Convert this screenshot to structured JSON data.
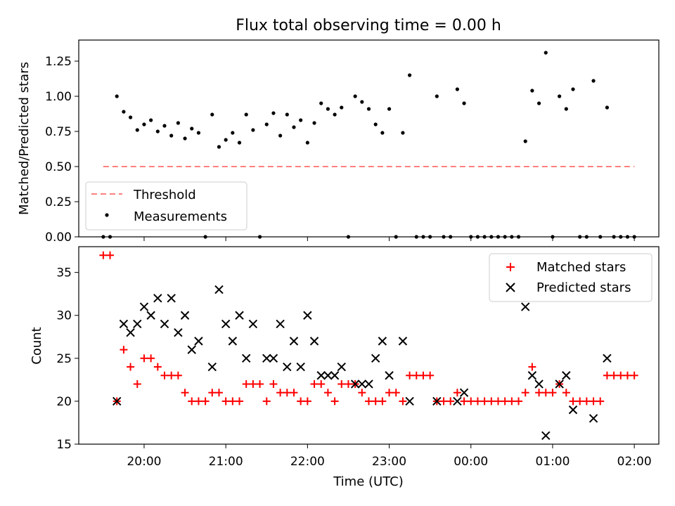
{
  "chart_data": [
    {
      "type": "scatter",
      "title": "Flux total observing time = 0.00 h",
      "xlabel": "",
      "ylabel": "Matched/Predicted stars",
      "ylim": [
        0,
        1.4
      ],
      "yticks": [
        0.0,
        0.25,
        0.5,
        0.75,
        1.0,
        1.25
      ],
      "ytick_labels": [
        "0.00",
        "0.25",
        "0.50",
        "0.75",
        "1.00",
        "1.25"
      ],
      "grid": false,
      "legend_position": "lower-left",
      "threshold": {
        "name": "Threshold",
        "value": 0.5,
        "x_start": "19:30",
        "x_end": "02:00",
        "color": "#ff7f7f"
      },
      "series": [
        {
          "name": "Measurements",
          "color": "#000000",
          "points": [
            [
              "19:30",
              0.0
            ],
            [
              "19:35",
              0.0
            ],
            [
              "19:40",
              1.0
            ],
            [
              "19:45",
              0.89
            ],
            [
              "19:50",
              0.85
            ],
            [
              "19:55",
              0.76
            ],
            [
              "20:00",
              0.8
            ],
            [
              "20:05",
              0.83
            ],
            [
              "20:10",
              0.75
            ],
            [
              "20:15",
              0.79
            ],
            [
              "20:20",
              0.72
            ],
            [
              "20:25",
              0.81
            ],
            [
              "20:30",
              0.7
            ],
            [
              "20:35",
              0.77
            ],
            [
              "20:40",
              0.74
            ],
            [
              "20:45",
              0.0
            ],
            [
              "20:50",
              0.87
            ],
            [
              "20:55",
              0.64
            ],
            [
              "21:00",
              0.69
            ],
            [
              "21:05",
              0.74
            ],
            [
              "21:10",
              0.67
            ],
            [
              "21:15",
              0.87
            ],
            [
              "21:20",
              0.76
            ],
            [
              "21:25",
              0.0
            ],
            [
              "21:30",
              0.8
            ],
            [
              "21:35",
              0.88
            ],
            [
              "21:40",
              0.72
            ],
            [
              "21:45",
              0.87
            ],
            [
              "21:50",
              0.78
            ],
            [
              "21:55",
              0.83
            ],
            [
              "22:00",
              0.67
            ],
            [
              "22:05",
              0.81
            ],
            [
              "22:10",
              0.95
            ],
            [
              "22:15",
              0.91
            ],
            [
              "22:20",
              0.87
            ],
            [
              "22:25",
              0.92
            ],
            [
              "22:30",
              0.0
            ],
            [
              "22:35",
              1.0
            ],
            [
              "22:40",
              0.96
            ],
            [
              "22:45",
              0.91
            ],
            [
              "22:50",
              0.8
            ],
            [
              "22:55",
              0.74
            ],
            [
              "23:00",
              0.91
            ],
            [
              "23:05",
              0.0
            ],
            [
              "23:10",
              0.74
            ],
            [
              "23:15",
              1.15
            ],
            [
              "23:20",
              0.0
            ],
            [
              "23:25",
              0.0
            ],
            [
              "23:30",
              0.0
            ],
            [
              "23:35",
              1.0
            ],
            [
              "23:40",
              0.0
            ],
            [
              "23:45",
              0.0
            ],
            [
              "23:50",
              1.05
            ],
            [
              "23:55",
              0.95
            ],
            [
              "00:00",
              0.0
            ],
            [
              "00:05",
              0.0
            ],
            [
              "00:10",
              0.0
            ],
            [
              "00:15",
              0.0
            ],
            [
              "00:20",
              0.0
            ],
            [
              "00:25",
              0.0
            ],
            [
              "00:30",
              0.0
            ],
            [
              "00:35",
              0.0
            ],
            [
              "00:40",
              0.68
            ],
            [
              "00:45",
              1.04
            ],
            [
              "00:50",
              0.95
            ],
            [
              "00:55",
              1.31
            ],
            [
              "01:00",
              0.0
            ],
            [
              "01:05",
              1.0
            ],
            [
              "01:10",
              0.91
            ],
            [
              "01:15",
              1.05
            ],
            [
              "01:20",
              0.0
            ],
            [
              "01:25",
              0.0
            ],
            [
              "01:30",
              1.11
            ],
            [
              "01:35",
              0.0
            ],
            [
              "01:40",
              0.92
            ],
            [
              "01:45",
              0.0
            ],
            [
              "01:50",
              0.0
            ],
            [
              "01:55",
              0.0
            ],
            [
              "02:00",
              0.0
            ]
          ]
        }
      ]
    },
    {
      "type": "scatter",
      "title": "",
      "xlabel": "Time (UTC)",
      "ylabel": "Count",
      "ylim": [
        15,
        38
      ],
      "yticks": [
        15,
        20,
        25,
        30,
        35
      ],
      "ytick_labels": [
        "15",
        "20",
        "25",
        "30",
        "35"
      ],
      "xlim": [
        "19:12",
        "02:18"
      ],
      "xticks": [
        "20:00",
        "21:00",
        "22:00",
        "23:00",
        "00:00",
        "01:00",
        "02:00"
      ],
      "xtick_labels": [
        "20:00",
        "21:00",
        "22:00",
        "23:00",
        "00:00",
        "01:00",
        "02:00"
      ],
      "grid": false,
      "legend_position": "upper-right",
      "series": [
        {
          "name": "Matched stars",
          "marker": "plus",
          "color": "#ff0000",
          "points": [
            [
              "19:30",
              37
            ],
            [
              "19:35",
              37
            ],
            [
              "19:40",
              20
            ],
            [
              "19:45",
              26
            ],
            [
              "19:50",
              24
            ],
            [
              "19:55",
              22
            ],
            [
              "20:00",
              25
            ],
            [
              "20:05",
              25
            ],
            [
              "20:10",
              24
            ],
            [
              "20:15",
              23
            ],
            [
              "20:20",
              23
            ],
            [
              "20:25",
              23
            ],
            [
              "20:30",
              21
            ],
            [
              "20:35",
              20
            ],
            [
              "20:40",
              20
            ],
            [
              "20:45",
              20
            ],
            [
              "20:50",
              21
            ],
            [
              "20:55",
              21
            ],
            [
              "21:00",
              20
            ],
            [
              "21:05",
              20
            ],
            [
              "21:10",
              20
            ],
            [
              "21:15",
              22
            ],
            [
              "21:20",
              22
            ],
            [
              "21:25",
              22
            ],
            [
              "21:30",
              20
            ],
            [
              "21:35",
              22
            ],
            [
              "21:40",
              21
            ],
            [
              "21:45",
              21
            ],
            [
              "21:50",
              21
            ],
            [
              "21:55",
              20
            ],
            [
              "22:00",
              20
            ],
            [
              "22:05",
              22
            ],
            [
              "22:10",
              22
            ],
            [
              "22:15",
              21
            ],
            [
              "22:20",
              20
            ],
            [
              "22:25",
              22
            ],
            [
              "22:30",
              22
            ],
            [
              "22:35",
              22
            ],
            [
              "22:40",
              21
            ],
            [
              "22:45",
              20
            ],
            [
              "22:50",
              20
            ],
            [
              "22:55",
              20
            ],
            [
              "23:00",
              21
            ],
            [
              "23:05",
              21
            ],
            [
              "23:10",
              20
            ],
            [
              "23:15",
              23
            ],
            [
              "23:20",
              23
            ],
            [
              "23:25",
              23
            ],
            [
              "23:30",
              23
            ],
            [
              "23:35",
              20
            ],
            [
              "23:40",
              20
            ],
            [
              "23:45",
              20
            ],
            [
              "23:50",
              21
            ],
            [
              "23:55",
              20
            ],
            [
              "00:00",
              20
            ],
            [
              "00:05",
              20
            ],
            [
              "00:10",
              20
            ],
            [
              "00:15",
              20
            ],
            [
              "00:20",
              20
            ],
            [
              "00:25",
              20
            ],
            [
              "00:30",
              20
            ],
            [
              "00:35",
              20
            ],
            [
              "00:40",
              21
            ],
            [
              "00:45",
              24
            ],
            [
              "00:50",
              21
            ],
            [
              "00:55",
              21
            ],
            [
              "01:00",
              21
            ],
            [
              "01:05",
              22
            ],
            [
              "01:10",
              21
            ],
            [
              "01:15",
              20
            ],
            [
              "01:20",
              20
            ],
            [
              "01:25",
              20
            ],
            [
              "01:30",
              20
            ],
            [
              "01:35",
              20
            ],
            [
              "01:40",
              23
            ],
            [
              "01:45",
              23
            ],
            [
              "01:50",
              23
            ],
            [
              "01:55",
              23
            ],
            [
              "02:00",
              23
            ]
          ]
        },
        {
          "name": "Predicted stars",
          "marker": "x",
          "color": "#000000",
          "points": [
            [
              "19:40",
              20
            ],
            [
              "19:45",
              29
            ],
            [
              "19:50",
              28
            ],
            [
              "19:55",
              29
            ],
            [
              "20:00",
              31
            ],
            [
              "20:05",
              30
            ],
            [
              "20:10",
              32
            ],
            [
              "20:15",
              29
            ],
            [
              "20:20",
              32
            ],
            [
              "20:25",
              28
            ],
            [
              "20:30",
              30
            ],
            [
              "20:35",
              26
            ],
            [
              "20:40",
              27
            ],
            [
              "20:50",
              24
            ],
            [
              "20:55",
              33
            ],
            [
              "21:00",
              29
            ],
            [
              "21:05",
              27
            ],
            [
              "21:10",
              30
            ],
            [
              "21:15",
              25
            ],
            [
              "21:20",
              29
            ],
            [
              "21:30",
              25
            ],
            [
              "21:35",
              25
            ],
            [
              "21:40",
              29
            ],
            [
              "21:45",
              24
            ],
            [
              "21:50",
              27
            ],
            [
              "21:55",
              24
            ],
            [
              "22:00",
              30
            ],
            [
              "22:05",
              27
            ],
            [
              "22:10",
              23
            ],
            [
              "22:15",
              23
            ],
            [
              "22:20",
              23
            ],
            [
              "22:25",
              24
            ],
            [
              "22:35",
              22
            ],
            [
              "22:40",
              22
            ],
            [
              "22:45",
              22
            ],
            [
              "22:50",
              25
            ],
            [
              "22:55",
              27
            ],
            [
              "23:00",
              23
            ],
            [
              "23:10",
              27
            ],
            [
              "23:15",
              20
            ],
            [
              "23:35",
              20
            ],
            [
              "23:50",
              20
            ],
            [
              "23:55",
              21
            ],
            [
              "00:40",
              31
            ],
            [
              "00:45",
              23
            ],
            [
              "00:50",
              22
            ],
            [
              "00:55",
              16
            ],
            [
              "01:05",
              22
            ],
            [
              "01:10",
              23
            ],
            [
              "01:15",
              19
            ],
            [
              "01:30",
              18
            ],
            [
              "01:40",
              25
            ]
          ]
        }
      ]
    }
  ]
}
